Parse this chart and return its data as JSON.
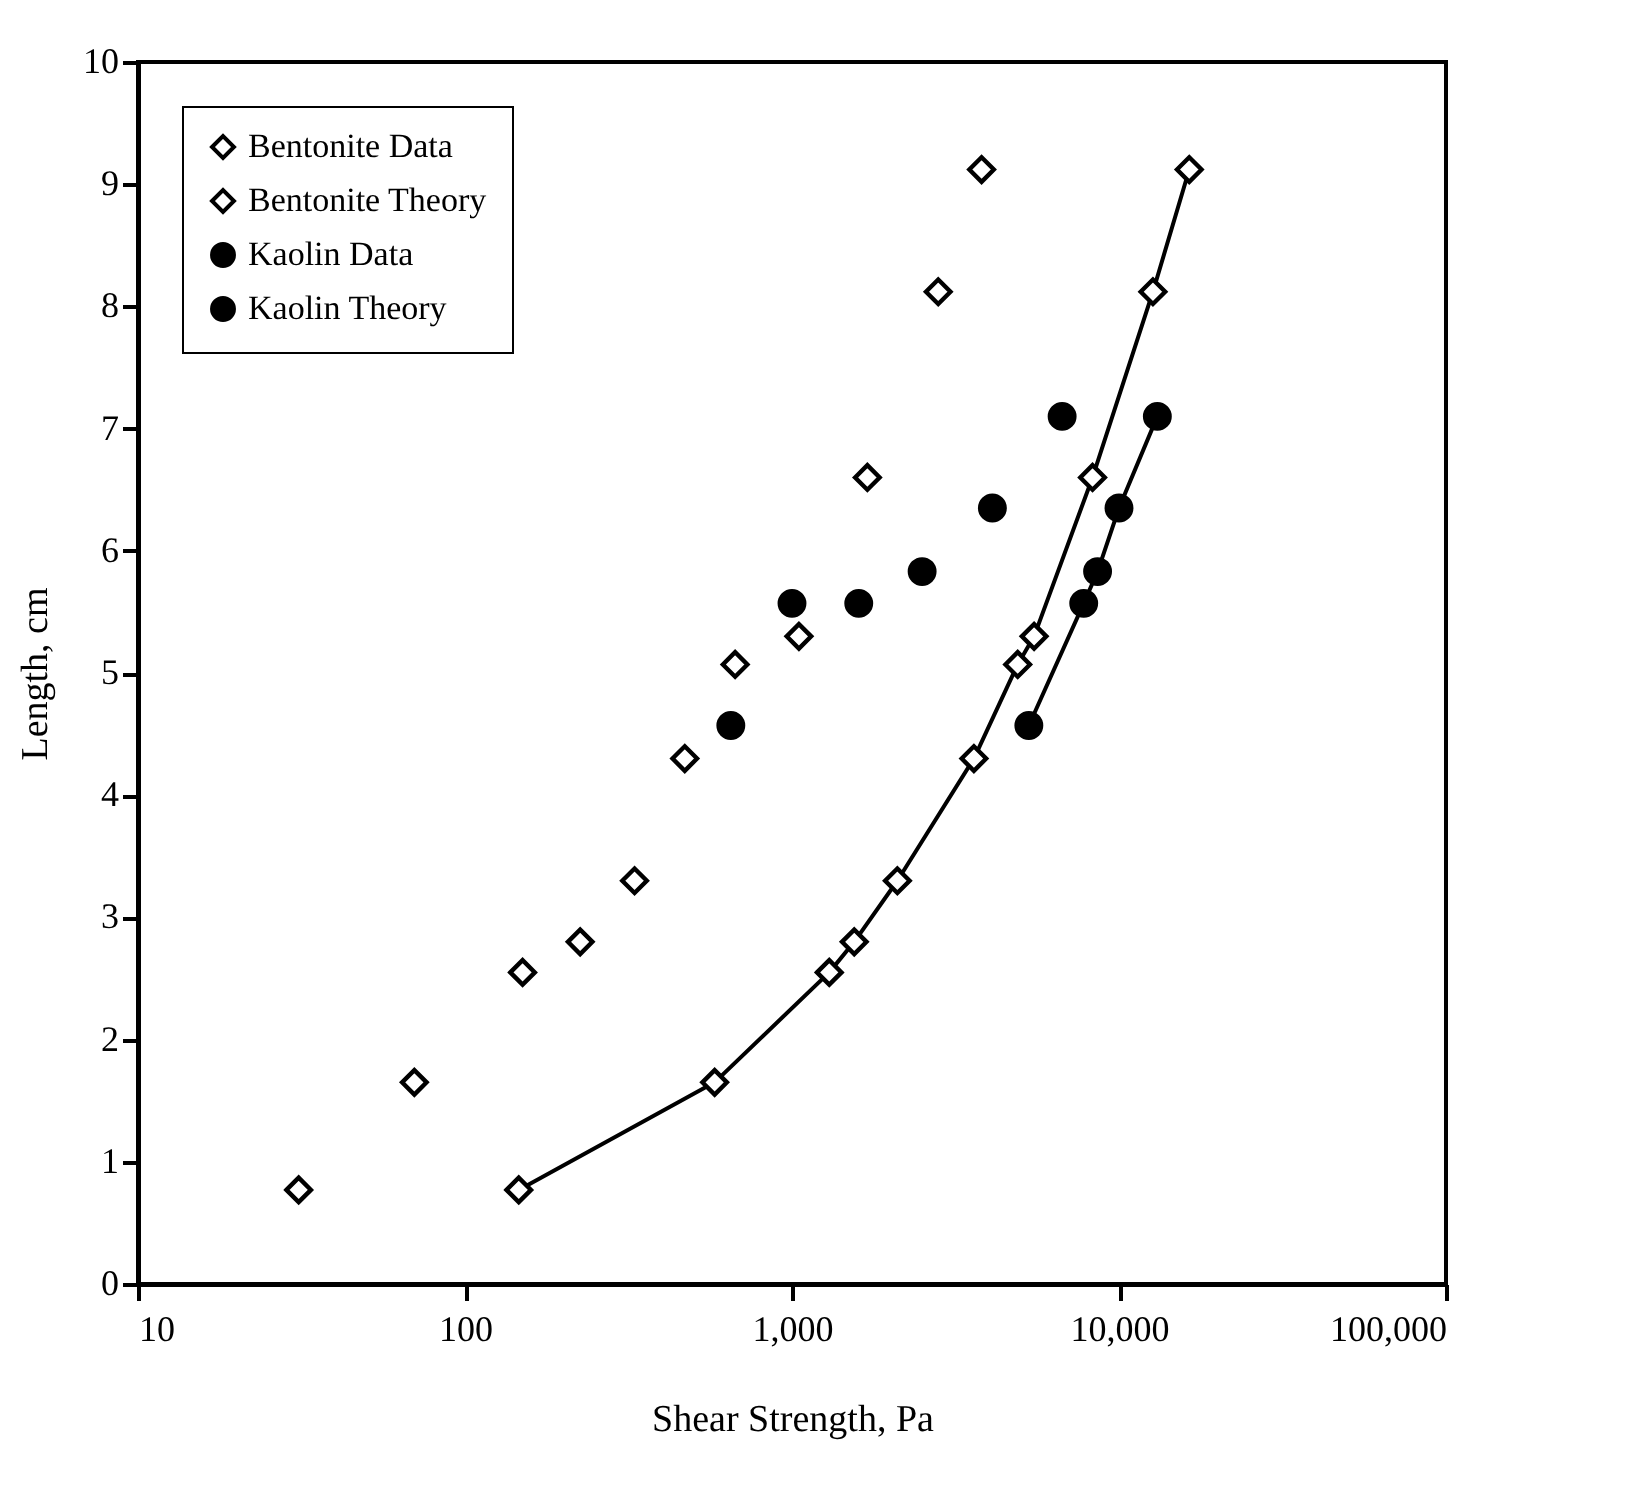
{
  "chart_data": {
    "type": "scatter",
    "xlabel": "Shear Strength, Pa",
    "ylabel": "Length, cm",
    "log": "x",
    "xlim": [
      10,
      100000
    ],
    "ylim": [
      0,
      10
    ],
    "xticks": [
      10,
      100,
      {
        "value": 1000,
        "label": "1,000"
      },
      {
        "value": 10000,
        "label": "10,000"
      },
      {
        "value": 100000,
        "label": "100,000"
      }
    ],
    "yticks": [
      0,
      1,
      2,
      3,
      4,
      5,
      6,
      7,
      8,
      9,
      10
    ],
    "grid": false,
    "legend": "top left",
    "series": [
      {
        "name": "Bentonite Data",
        "marker": "diamond",
        "color": "#000000",
        "x": [
          31,
          70,
          150,
          225,
          330,
          470,
          670,
          1050,
          1700,
          2800,
          3800
        ],
        "values": [
          0.77,
          1.65,
          2.55,
          2.8,
          3.3,
          4.3,
          5.07,
          5.3,
          6.6,
          8.12,
          9.12
        ]
      },
      {
        "name": "Bentonite Theory",
        "type": "line",
        "marker": "diamond",
        "color": "#000000",
        "x": [
          146,
          580,
          1300,
          1550,
          2100,
          3600,
          4900,
          5500,
          8300,
          12700,
          16400
        ],
        "values": [
          0.77,
          1.65,
          2.55,
          2.8,
          3.3,
          4.3,
          5.07,
          5.3,
          6.6,
          8.12,
          9.12
        ]
      },
      {
        "name": "Kaolin Data",
        "marker": "circle",
        "color": "#000000",
        "x": [
          650,
          1000,
          1600,
          2500,
          4100,
          6700
        ],
        "values": [
          4.57,
          5.57,
          5.57,
          5.83,
          6.35,
          7.1
        ]
      },
      {
        "name": "Kaolin Theory",
        "type": "line",
        "marker": "circle",
        "color": "#000000",
        "x": [
          5300,
          7800,
          8600,
          10000,
          13100
        ],
        "values": [
          4.57,
          5.57,
          5.83,
          6.35,
          7.1
        ]
      }
    ]
  }
}
